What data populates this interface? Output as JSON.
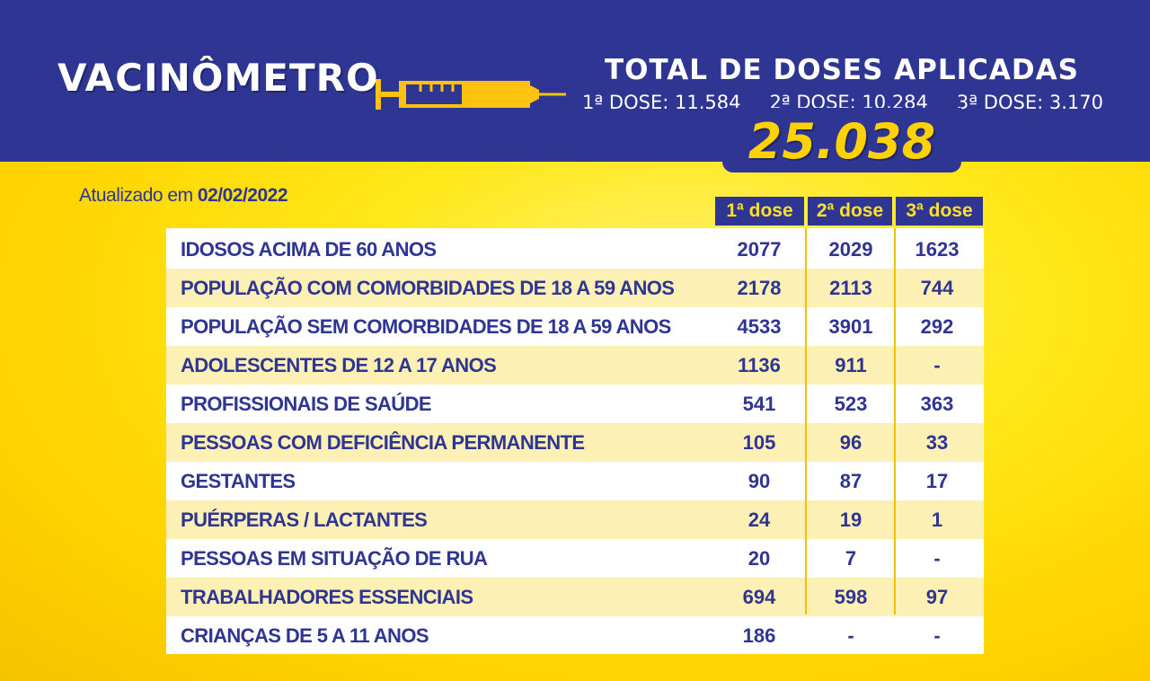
{
  "logo": {
    "text": "VACINÔMETRO"
  },
  "total": {
    "title": "TOTAL DE DOSES APLICADAS",
    "dose1": "1ª DOSE: 11.584",
    "dose2": "2ª DOSE: 10.284",
    "dose3": "3ª DOSE: 3.170",
    "value": "25.038"
  },
  "updated": {
    "prefix": "Atualizado em ",
    "date": "02/02/2022"
  },
  "table": {
    "headers": [
      "1ª dose",
      "2ª dose",
      "3ª dose"
    ],
    "rows": [
      {
        "label": "IDOSOS ACIMA DE 60 ANOS",
        "d1": "2077",
        "d2": "2029",
        "d3": "1623"
      },
      {
        "label": "POPULAÇÃO COM COMORBIDADES DE 18 A 59 ANOS",
        "d1": "2178",
        "d2": "2113",
        "d3": "744"
      },
      {
        "label": "POPULAÇÃO SEM COMORBIDADES DE 18 A 59 ANOS",
        "d1": "4533",
        "d2": "3901",
        "d3": "292"
      },
      {
        "label": "ADOLESCENTES DE 12 A 17 ANOS",
        "d1": "1136",
        "d2": "911",
        "d3": "-"
      },
      {
        "label": "PROFISSIONAIS DE SAÚDE",
        "d1": "541",
        "d2": "523",
        "d3": "363"
      },
      {
        "label": "PESSOAS COM DEFICIÊNCIA PERMANENTE",
        "d1": "105",
        "d2": "96",
        "d3": "33"
      },
      {
        "label": "GESTANTES",
        "d1": "90",
        "d2": "87",
        "d3": "17"
      },
      {
        "label": "PUÉRPERAS / LACTANTES",
        "d1": "24",
        "d2": "19",
        "d3": "1"
      },
      {
        "label": "PESSOAS EM SITUAÇÃO DE RUA",
        "d1": "20",
        "d2": "7",
        "d3": "-"
      },
      {
        "label": "TRABALHADORES ESSENCIAIS",
        "d1": "694",
        "d2": "598",
        "d3": "97"
      },
      {
        "label": "CRIANÇAS DE 5 A 11 ANOS",
        "d1": "186",
        "d2": "-",
        "d3": "-"
      }
    ]
  },
  "colors": {
    "navy": "#2e3592",
    "yellow": "#ffd200",
    "row_alt": "#fdf0b5"
  },
  "icons": {
    "syringe": "syringe-icon"
  }
}
